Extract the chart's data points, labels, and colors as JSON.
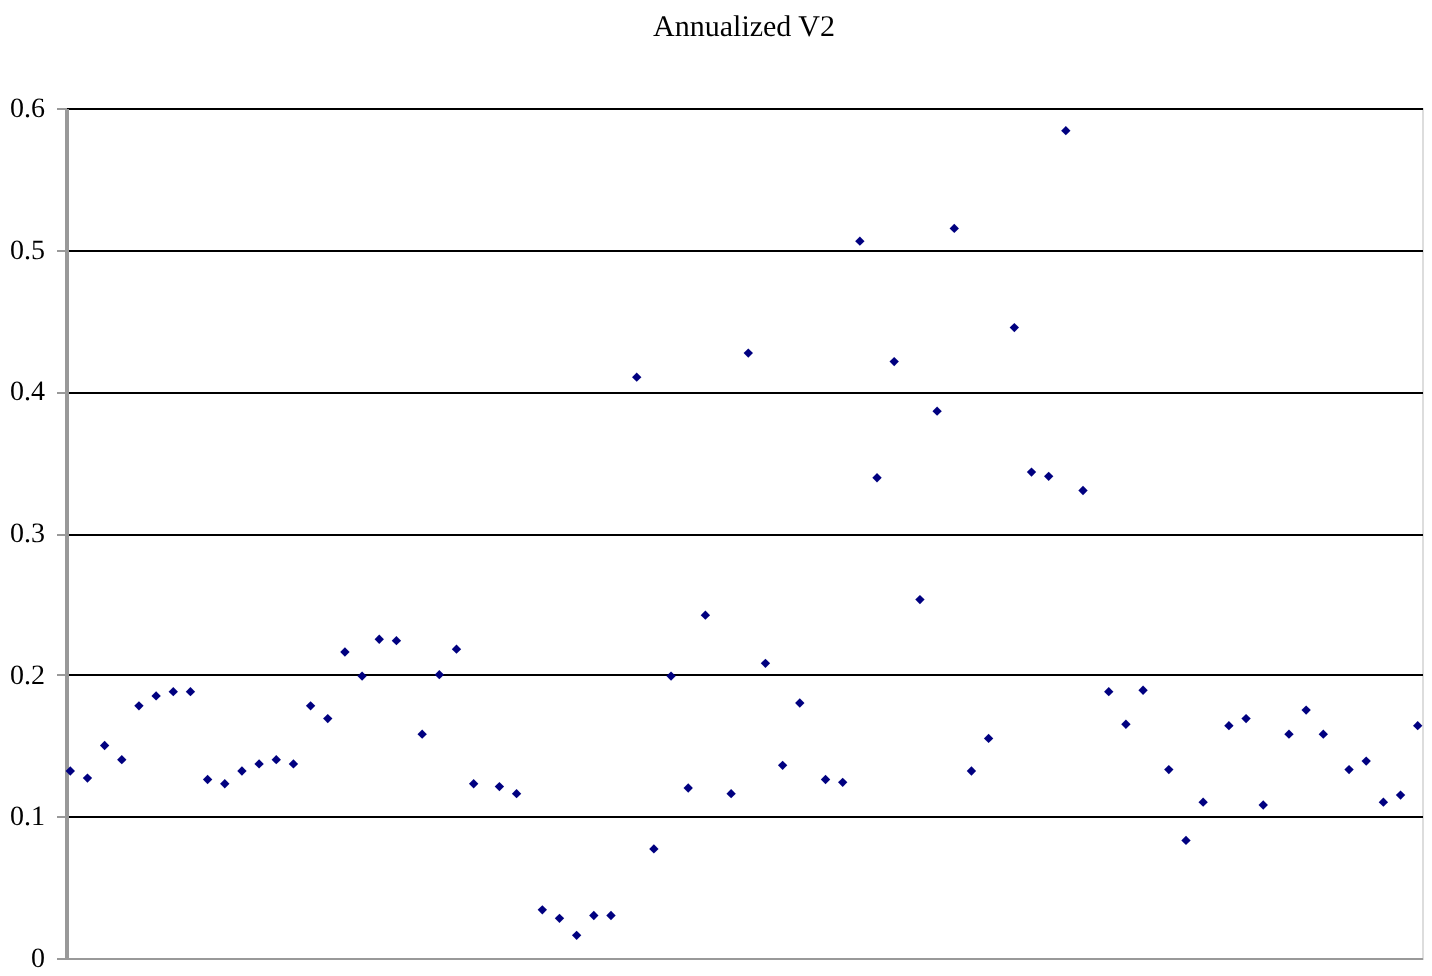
{
  "chart_data": {
    "type": "scatter",
    "title": "Annualized V2",
    "categories": [
      null,
      null,
      null,
      null,
      null,
      null,
      null,
      null,
      null,
      null,
      null,
      null,
      null,
      null,
      null,
      null,
      null,
      null,
      null,
      null,
      null,
      null,
      null,
      null,
      null,
      null,
      null,
      null,
      null,
      null,
      null,
      null,
      null,
      null,
      null,
      null,
      null,
      null,
      null,
      null,
      null,
      null,
      null,
      null,
      null,
      null,
      null,
      null,
      null,
      null,
      null,
      null,
      null,
      null,
      null,
      null,
      null,
      null,
      null,
      null,
      null,
      null,
      null,
      null,
      null,
      null,
      null,
      null,
      null,
      null,
      null,
      null,
      null,
      null,
      null,
      null,
      null,
      null,
      null,
      null,
      null,
      null,
      null,
      null,
      null,
      null,
      null,
      null,
      null,
      null,
      null,
      null,
      null,
      null,
      null,
      null,
      null,
      null,
      null,
      null,
      null,
      null,
      null,
      null,
      null,
      null,
      null,
      null,
      null,
      null,
      null,
      null,
      null,
      null,
      null,
      null,
      null,
      null,
      null,
      null,
      null,
      null,
      null,
      null,
      null,
      null,
      null,
      null,
      null,
      null,
      null,
      null,
      null,
      null,
      null,
      null,
      null,
      null,
      null,
      null,
      null,
      null,
      null,
      null,
      null,
      null,
      null,
      null,
      null,
      null,
      null,
      null,
      null,
      null,
      null,
      null,
      null,
      null
    ],
    "series": [
      {
        "color": "#000080",
        "values": [
          0.132,
          null,
          0.127,
          null,
          0.15,
          null,
          0.14,
          null,
          0.178,
          null,
          0.185,
          null,
          0.188,
          null,
          0.188,
          null,
          0.126,
          null,
          0.123,
          null,
          0.132,
          null,
          0.137,
          null,
          0.14,
          null,
          0.137,
          null,
          0.178,
          null,
          0.169,
          null,
          0.216,
          null,
          0.199,
          null,
          0.225,
          null,
          0.224,
          null,
          null,
          0.158,
          null,
          0.2,
          null,
          0.218,
          null,
          0.123,
          null,
          null,
          0.121,
          null,
          0.116,
          null,
          null,
          0.034,
          null,
          0.028,
          null,
          0.016,
          null,
          0.03,
          null,
          0.03,
          null,
          null,
          0.41,
          null,
          0.077,
          null,
          0.199,
          null,
          0.12,
          null,
          0.242,
          null,
          null,
          0.116,
          null,
          0.427,
          null,
          0.208,
          null,
          0.136,
          null,
          0.18,
          null,
          null,
          0.126,
          null,
          0.124,
          null,
          0.506,
          null,
          0.339,
          null,
          0.421,
          null,
          null,
          0.253,
          null,
          0.386,
          null,
          0.515,
          null,
          0.132,
          null,
          0.155,
          null,
          null,
          0.445,
          null,
          0.343,
          null,
          0.34,
          null,
          0.584,
          null,
          0.33,
          null,
          null,
          0.188,
          null,
          0.165,
          null,
          0.189,
          null,
          null,
          0.133,
          null,
          0.083,
          null,
          0.11,
          null,
          null,
          0.164,
          null,
          0.169,
          null,
          0.108,
          null,
          null,
          0.158,
          null,
          0.175,
          null,
          0.158,
          null,
          null,
          0.133,
          null,
          0.139,
          null,
          0.11,
          null,
          0.115,
          null,
          0.164
        ]
      }
    ],
    "ylim": [
      0,
      0.6
    ],
    "yticks": [
      0,
      0.1,
      0.2,
      0.3,
      0.4,
      0.5,
      0.6
    ],
    "grid": "y",
    "marker": "diamond"
  }
}
